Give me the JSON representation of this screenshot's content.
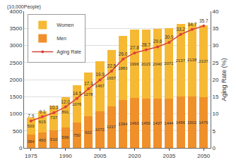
{
  "chart_data": {
    "type": "bar",
    "stacked": true,
    "data_labels": true,
    "grid": true,
    "legend": "top-left",
    "y_label": "(10,000People)",
    "y2_label": "Aging Rate (%)",
    "categories": [
      "1975",
      null,
      null,
      "1990",
      null,
      null,
      "2005",
      null,
      null,
      "2020",
      null,
      null,
      "2035",
      null,
      null,
      "2050"
    ],
    "series": [
      {
        "name": "Men",
        "color": "#f0902a",
        "values": [
          384,
          450,
          510,
          599,
          750,
          922,
          1072,
          1217,
          1394,
          1460,
          1450,
          1437,
          1444,
          1496,
          1502,
          1479
        ]
      },
      {
        "name": "Women",
        "color": "#f6b933",
        "values": [
          503,
          615,
          737,
          891,
          1076,
          1278,
          1467,
          1657,
          1883,
          1996,
          2023,
          2040,
          2071,
          2137,
          2138,
          2107
        ]
      },
      {
        "name": "Aging Rate",
        "type": "line",
        "axis": "y2",
        "color": "#d9403a",
        "marker": "circle",
        "values": [
          7.9,
          9.1,
          10.3,
          12.0,
          14.5,
          17.3,
          19.9,
          22.5,
          26.0,
          27.8,
          28.7,
          29.6,
          30.9,
          33.2,
          34.7,
          35.7
        ],
        "value_labels": [
          "7.9",
          "9.1",
          "10.3",
          "12.0",
          "14.5",
          "17.3",
          "19.9",
          "22.5",
          "26.0",
          "27.8",
          "28.7",
          "29.6",
          "30.9",
          "33.2",
          "34.7",
          "35.7"
        ]
      }
    ],
    "ylim": [
      0,
      4000
    ],
    "yticks": [
      0,
      500,
      1000,
      1500,
      2000,
      2500,
      3000,
      3500,
      4000
    ],
    "y2lim": [
      0,
      40
    ],
    "y2ticks": [
      0,
      5,
      10,
      15,
      20,
      25,
      30,
      35,
      40
    ]
  }
}
